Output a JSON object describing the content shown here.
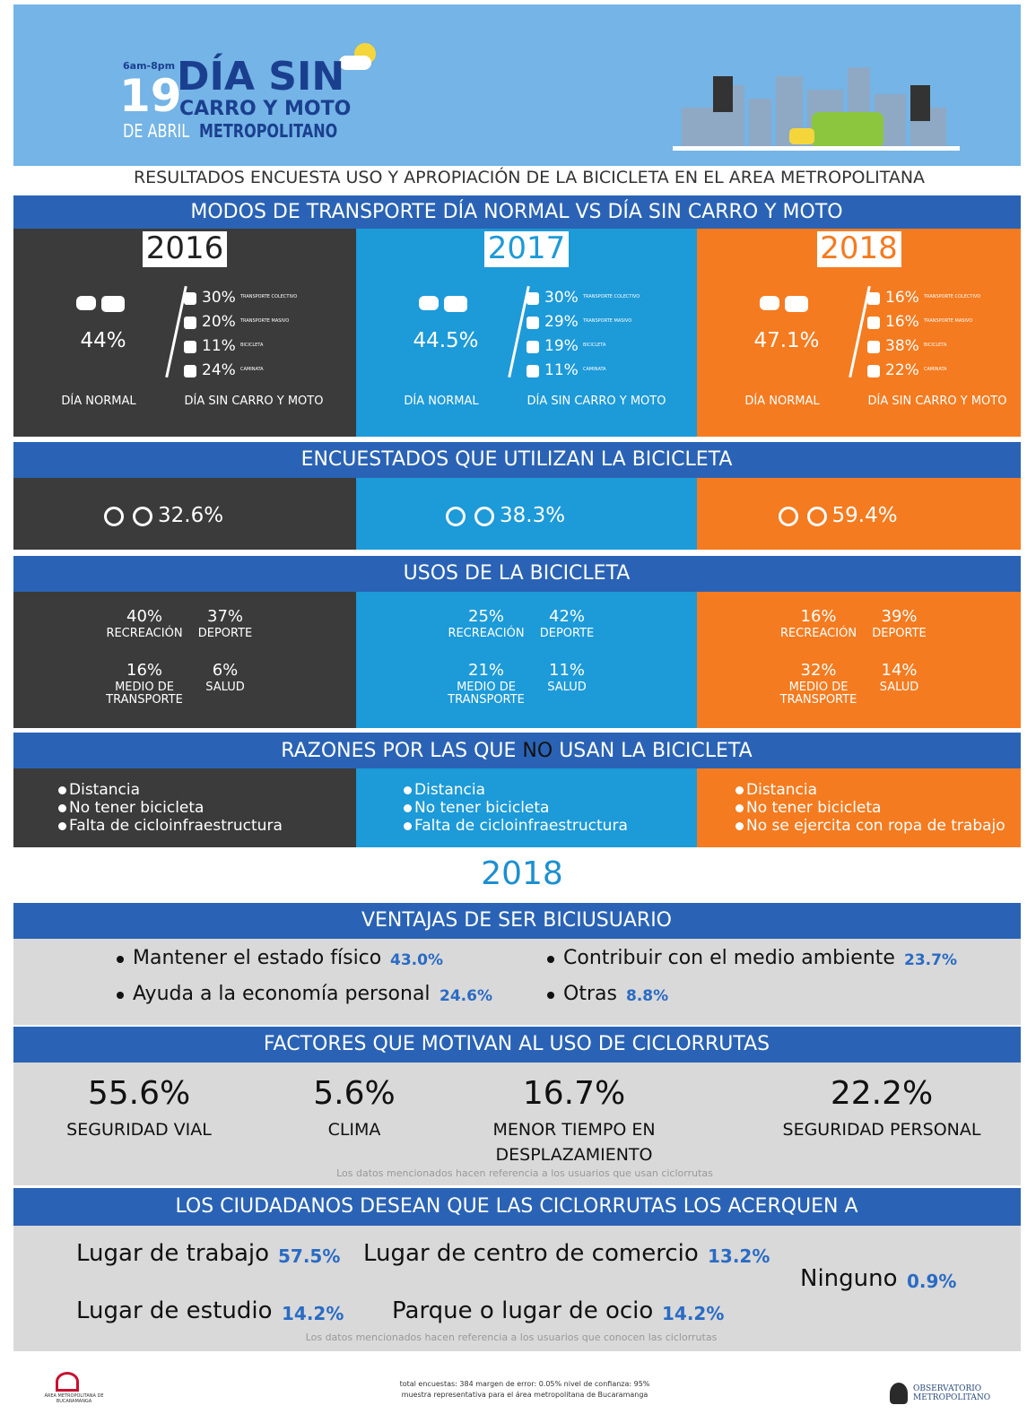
{
  "header": {
    "hours": "6am-8pm",
    "day": "19",
    "title": "DÍA SIN",
    "title2": "CARRO Y MOTO",
    "month": "DE ABRIL",
    "place": "METROPOLITANO"
  },
  "subtitle": "RESULTADOS ENCUESTA USO Y APROPIACIÓN DE LA BICICLETA EN EL AREA METROPOLITANA",
  "modes": {
    "title": "MODOS DE TRANSPORTE DÍA NORMAL VS DÍA SIN CARRO Y MOTO",
    "years": [
      {
        "year": "2016",
        "normal": "44%",
        "normal_label": "DÍA NORMAL",
        "no_car_label": "DÍA SIN CARRO Y MOTO",
        "items": [
          {
            "value": "30%",
            "label": "TRANSPORTE COLECTIVO"
          },
          {
            "value": "20%",
            "label": "TRANSPORTE MASIVO"
          },
          {
            "value": "11%",
            "label": "BICICLETA"
          },
          {
            "value": "24%",
            "label": "CAMINATA"
          }
        ]
      },
      {
        "year": "2017",
        "normal": "44.5%",
        "normal_label": "DÍA NORMAL",
        "no_car_label": "DÍA SIN CARRO Y MOTO",
        "items": [
          {
            "value": "30%",
            "label": "TRANSPORTE COLECTIVO"
          },
          {
            "value": "29%",
            "label": "TRANSPORTE MASIVO"
          },
          {
            "value": "19%",
            "label": "BICICLETA"
          },
          {
            "value": "11%",
            "label": "CAMINATA"
          }
        ]
      },
      {
        "year": "2018",
        "normal": "47.1%",
        "normal_label": "DÍA NORMAL",
        "no_car_label": "DÍA SIN CARRO Y MOTO",
        "items": [
          {
            "value": "16%",
            "label": "TRANSPORTE COLECTIVO"
          },
          {
            "value": "16%",
            "label": "TRANSPORTE MASIVO"
          },
          {
            "value": "38%",
            "label": "BICICLETA"
          },
          {
            "value": "22%",
            "label": "CAMINATA"
          }
        ]
      }
    ]
  },
  "bike_users": {
    "title": "ENCUESTADOS QUE UTILIZAN LA BICICLETA",
    "values": [
      "32.6%",
      "38.3%",
      "59.4%"
    ]
  },
  "uses": {
    "title": "USOS DE LA BICICLETA",
    "years": [
      [
        {
          "value": "40%",
          "label": "RECREACIÓN"
        },
        {
          "value": "37%",
          "label": "DEPORTE"
        },
        {
          "value": "16%",
          "label": "MEDIO DE TRANSPORTE"
        },
        {
          "value": "6%",
          "label": "SALUD"
        }
      ],
      [
        {
          "value": "25%",
          "label": "RECREACIÓN"
        },
        {
          "value": "42%",
          "label": "DEPORTE"
        },
        {
          "value": "21%",
          "label": "MEDIO DE TRANSPORTE"
        },
        {
          "value": "11%",
          "label": "SALUD"
        }
      ],
      [
        {
          "value": "16%",
          "label": "RECREACIÓN"
        },
        {
          "value": "39%",
          "label": "DEPORTE"
        },
        {
          "value": "32%",
          "label": "MEDIO DE TRANSPORTE"
        },
        {
          "value": "14%",
          "label": "SALUD"
        }
      ]
    ]
  },
  "reasons": {
    "title_start": "RAZONES POR LAS QUE",
    "title_no": "NO",
    "title_end": "USAN LA BICICLETA",
    "years": [
      [
        "Distancia",
        "No tener bicicleta",
        "Falta de cicloinfraestructura"
      ],
      [
        "Distancia",
        "No tener bicicleta",
        "Falta de cicloinfraestructura"
      ],
      [
        "Distancia",
        "No tener bicicleta",
        "No se ejercita con ropa de trabajo"
      ]
    ]
  },
  "year_2018": "2018",
  "advantages": {
    "title": "VENTAJAS DE SER BICIUSUARIO",
    "items": [
      {
        "text": "Mantener el estado físico",
        "value": "43.0%"
      },
      {
        "text": "Ayuda a la economía personal",
        "value": "24.6%"
      },
      {
        "text": "Contribuir con el medio ambiente",
        "value": "23.7%"
      },
      {
        "text": "Otras",
        "value": "8.8%"
      }
    ]
  },
  "factors": {
    "title": "FACTORES QUE MOTIVAN AL USO DE CICLORRUTAS",
    "items": [
      {
        "value": "55.6%",
        "label": "SEGURIDAD VIAL"
      },
      {
        "value": "5.6%",
        "label": "CLIMA"
      },
      {
        "value": "16.7%",
        "label": "MENOR TIEMPO EN DESPLAZAMIENTO"
      },
      {
        "value": "22.2%",
        "label": "SEGURIDAD PERSONAL"
      }
    ],
    "note": "Los datos mencionados hacen referencia a los usuarios que usan ciclorrutas"
  },
  "wishes": {
    "title": "LOS CIUDADANOS DESEAN QUE LAS CICLORRUTAS LOS ACERQUEN A",
    "items": [
      {
        "text": "Lugar de trabajo",
        "value": "57.5%"
      },
      {
        "text": "Lugar de centro de comercio",
        "value": "13.2%"
      },
      {
        "text": "Lugar de estudio",
        "value": "14.2%"
      },
      {
        "text": "Parque o lugar de ocio",
        "value": "14.2%"
      },
      {
        "text": "Ninguno",
        "value": "0.9%"
      }
    ],
    "note": "Los datos mencionados hacen referencia a los usuarios que conocen las ciclorrutas"
  },
  "footer": {
    "line1": "total encuestas: 384   margen de error: 0.05%   nivel de confianza: 95%",
    "line2": "muestra representativa para el área metropolitana de Bucaramanga",
    "logo_left": "ÁREA METROPOLITANA DE BUCARAMANGA",
    "logo_right": "OBSERVATORIO METROPOLITANO"
  }
}
